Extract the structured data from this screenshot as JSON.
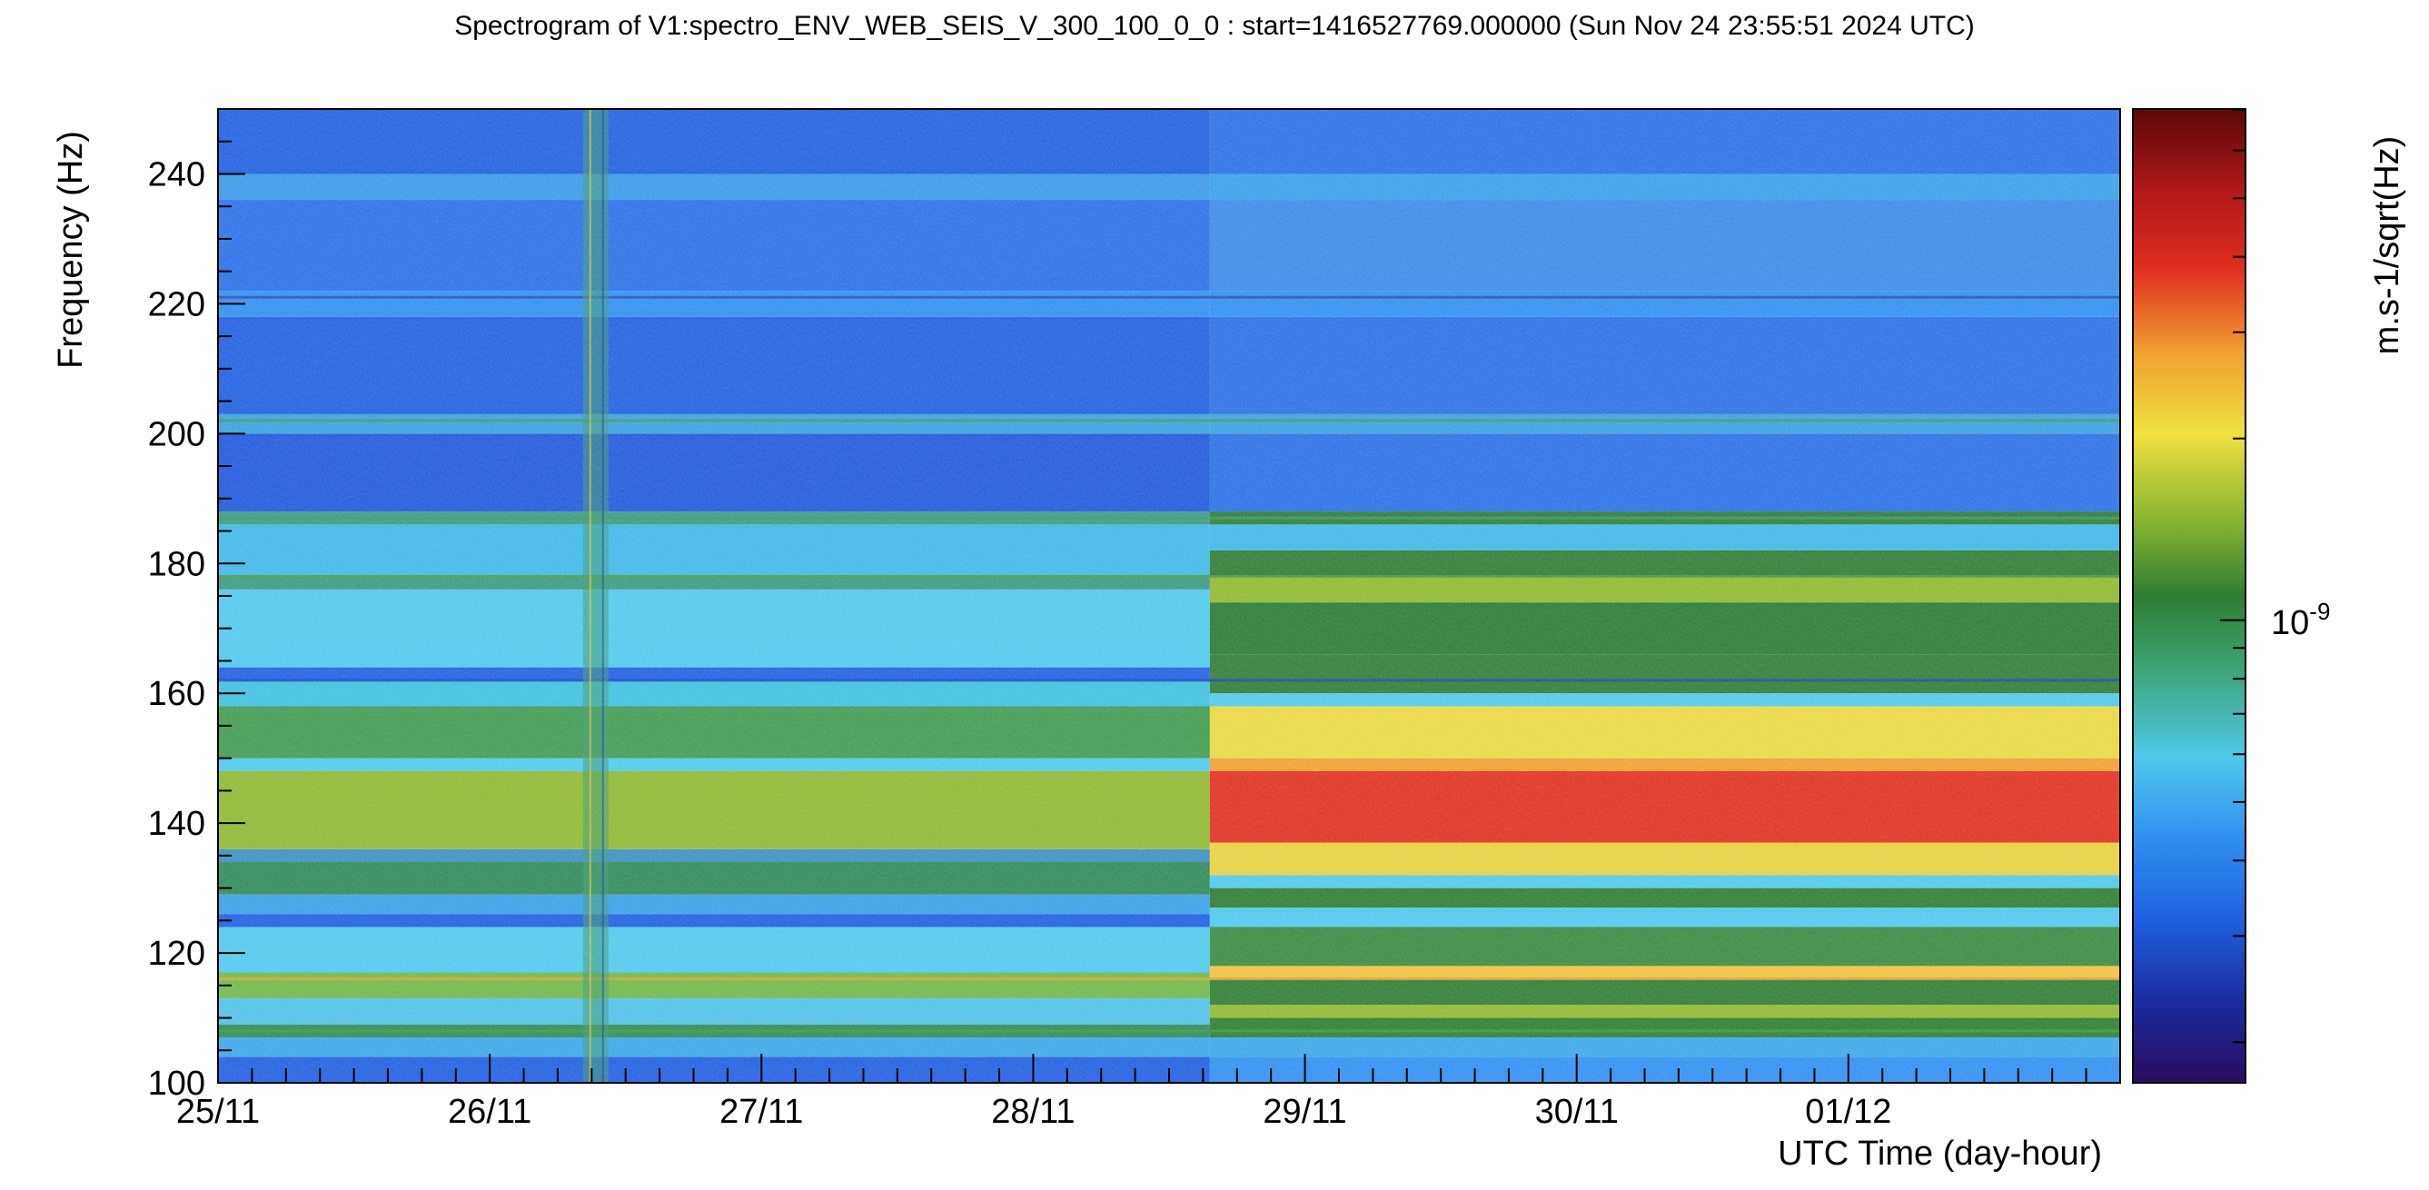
{
  "chart_data": {
    "type": "heatmap",
    "title": "Spectrogram of V1:spectro_ENV_WEB_SEIS_V_300_100_0_0 : start=1416527769.000000 (Sun Nov 24 23:55:51 2024 UTC)",
    "xlabel": "UTC Time (day-hour)",
    "ylabel": "Frequency (Hz)",
    "zlabel": "m.s-1/sqrt(Hz)",
    "x_tick_labels": [
      "25/11",
      "26/11",
      "27/11",
      "28/11",
      "29/11",
      "30/11",
      "01/12"
    ],
    "x_range_days": [
      0,
      7
    ],
    "y_ticks": [
      100,
      120,
      140,
      160,
      180,
      200,
      220,
      240
    ],
    "ylim": [
      100,
      250
    ],
    "colorbar": {
      "tick_label_base": "10",
      "tick_label_exp": "-9",
      "scale": "log"
    },
    "palette": [
      "#2a0a5e",
      "#1a2c9e",
      "#1f5fe0",
      "#2f8ff0",
      "#4fc8ec",
      "#3fa880",
      "#2e7d32",
      "#8fb830",
      "#f0e040",
      "#f0a030",
      "#e03020",
      "#b01818",
      "#5a0808"
    ],
    "transition_day": 3.65,
    "disturbance_day": 1.39,
    "bands_before": [
      {
        "range": [
          100,
          104
        ],
        "color": "#1f5fe0"
      },
      {
        "range": [
          104,
          107
        ],
        "color": "#3aa8e8"
      },
      {
        "range": [
          107,
          109
        ],
        "color": "#2e8a5a"
      },
      {
        "range": [
          109,
          113
        ],
        "color": "#4fc0e8"
      },
      {
        "range": [
          113,
          117
        ],
        "color": "#6fb84a"
      },
      {
        "range": [
          117,
          124
        ],
        "color": "#4fc8ec"
      },
      {
        "range": [
          124,
          126
        ],
        "color": "#1f5fe0"
      },
      {
        "range": [
          126,
          129
        ],
        "color": "#3aa0e8"
      },
      {
        "range": [
          129,
          134
        ],
        "color": "#2e8a5a"
      },
      {
        "range": [
          134,
          136
        ],
        "color": "#3a90c0"
      },
      {
        "range": [
          136,
          148
        ],
        "color": "#8fb830"
      },
      {
        "range": [
          148,
          150
        ],
        "color": "#4fc8ec"
      },
      {
        "range": [
          150,
          158
        ],
        "color": "#3f9a50"
      },
      {
        "range": [
          158,
          162
        ],
        "color": "#3fc0e0"
      },
      {
        "range": [
          162,
          164
        ],
        "color": "#1f5fe0"
      },
      {
        "range": [
          164,
          176
        ],
        "color": "#4fc8ec"
      },
      {
        "range": [
          176,
          178
        ],
        "color": "#3a9a80"
      },
      {
        "range": [
          178,
          186
        ],
        "color": "#3fb8e8"
      },
      {
        "range": [
          186,
          188
        ],
        "color": "#3a9a80"
      },
      {
        "range": [
          188,
          200
        ],
        "color": "#1f58dc"
      },
      {
        "range": [
          200,
          203
        ],
        "color": "#3aa0e0"
      },
      {
        "range": [
          203,
          218
        ],
        "color": "#1f5fe0"
      },
      {
        "range": [
          218,
          222
        ],
        "color": "#2f8ff0"
      },
      {
        "range": [
          222,
          236
        ],
        "color": "#2a70e8"
      },
      {
        "range": [
          236,
          240
        ],
        "color": "#3a98e8"
      },
      {
        "range": [
          240,
          250
        ],
        "color": "#1f5fe0"
      }
    ],
    "bands_after": [
      {
        "range": [
          100,
          104
        ],
        "color": "#2f8ff0"
      },
      {
        "range": [
          104,
          107
        ],
        "color": "#3aa8e8"
      },
      {
        "range": [
          107,
          110
        ],
        "color": "#2e7d32"
      },
      {
        "range": [
          110,
          112
        ],
        "color": "#8fb830"
      },
      {
        "range": [
          112,
          116
        ],
        "color": "#2e7d32"
      },
      {
        "range": [
          116,
          118
        ],
        "color": "#f0c040"
      },
      {
        "range": [
          118,
          124
        ],
        "color": "#3a8a40"
      },
      {
        "range": [
          124,
          127
        ],
        "color": "#4fc8ec"
      },
      {
        "range": [
          127,
          130
        ],
        "color": "#2e7d32"
      },
      {
        "range": [
          130,
          132
        ],
        "color": "#4fc8ec"
      },
      {
        "range": [
          132,
          137
        ],
        "color": "#e8d040"
      },
      {
        "range": [
          137,
          148
        ],
        "color": "#e03020"
      },
      {
        "range": [
          148,
          150
        ],
        "color": "#f0a030"
      },
      {
        "range": [
          150,
          158
        ],
        "color": "#e8d840"
      },
      {
        "range": [
          158,
          160
        ],
        "color": "#4fc8ec"
      },
      {
        "range": [
          160,
          166
        ],
        "color": "#2e7d32"
      },
      {
        "range": [
          166,
          174
        ],
        "color": "#2a7a30"
      },
      {
        "range": [
          174,
          178
        ],
        "color": "#8fb830"
      },
      {
        "range": [
          178,
          182
        ],
        "color": "#2e7d32"
      },
      {
        "range": [
          182,
          186
        ],
        "color": "#3fb8e8"
      },
      {
        "range": [
          186,
          188
        ],
        "color": "#2e7d32"
      },
      {
        "range": [
          188,
          200
        ],
        "color": "#2a70e8"
      },
      {
        "range": [
          200,
          203
        ],
        "color": "#3aa0e0"
      },
      {
        "range": [
          203,
          218
        ],
        "color": "#2a70e8"
      },
      {
        "range": [
          218,
          222
        ],
        "color": "#2f8ff0"
      },
      {
        "range": [
          222,
          236
        ],
        "color": "#3a88e8"
      },
      {
        "range": [
          236,
          240
        ],
        "color": "#3aa0e8"
      },
      {
        "range": [
          240,
          250
        ],
        "color": "#2a70e8"
      }
    ],
    "lines": [
      {
        "y": 202,
        "color": "#3a9a60"
      },
      {
        "y": 187,
        "color": "#3a9a60"
      },
      {
        "y": 178,
        "color": "#4a9a40"
      },
      {
        "y": 116,
        "color": "#e0a030"
      },
      {
        "y": 108,
        "color": "#3a9a40"
      },
      {
        "y": 221,
        "color": "#2a4ab0"
      },
      {
        "y": 162,
        "color": "#1f40c0"
      }
    ]
  }
}
